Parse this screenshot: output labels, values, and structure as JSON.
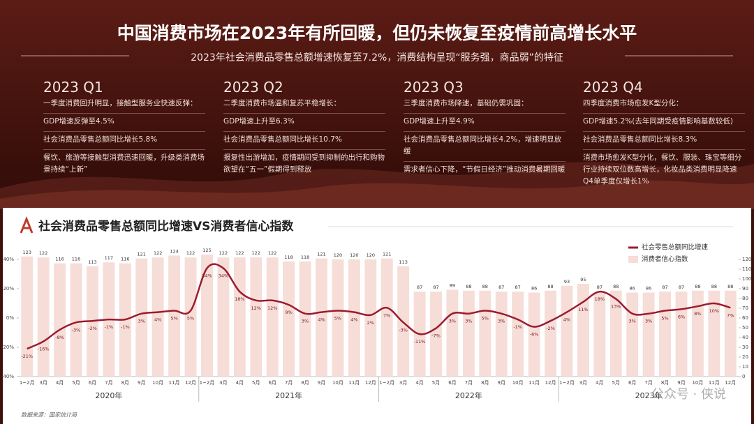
{
  "header": {
    "title": "中国消费市场在2023年有所回暖，但仍未恢复至疫情前高增长水平",
    "subtitle": "2023年社会消费品零售总额增速恢复至7.2%，消费结构呈现“服务强，商品弱”的特征"
  },
  "quarters": [
    {
      "heading": "2023 Q1",
      "intro": "一季度消费回升明显，接触型服务业快速反弹：",
      "items": [
        "GDP增速反弹至4.5%",
        "社会消费品零售总额同比增长5.8%",
        "餐饮、旅游等接触型消费迅速回暖，升级类消费场景持续“上新”"
      ]
    },
    {
      "heading": "2023 Q2",
      "intro": "二季度消费市场温和复苏平稳增长：",
      "items": [
        "GDP增速上升至6.3%",
        "社会消费品零售总额同比增长10.7%",
        "报复性出游增加，疫情期间受到抑制的出行和购物欲望在“五一”假期得到释放"
      ]
    },
    {
      "heading": "2023 Q3",
      "intro": "三季度消费市场降速，基础仍需巩固：",
      "items": [
        "GDP增速上升至4.9%",
        "社会消费品零售总额同比增长4.2%，增速明显放缓",
        "需求者信心下降，“节假日经济”推动消费暑期回暖"
      ]
    },
    {
      "heading": "2023 Q4",
      "intro": "四季度消费市场愈发K型分化：",
      "items": [
        "GDP增速5.2%(去年同期受疫情影响基数较低)",
        "社会消费品零售总额同比增长8.3%",
        "消费市场愈发K型分化，餐饮、服装、珠宝等细分行业持续双位数高增长，化妆品类消费明显降速Q4单季度仅增长1%"
      ]
    }
  ],
  "chart_data": {
    "type": "combo",
    "title": "社会消费品零售总额同比增速VS消费者信心指数",
    "categories": [
      "1~2月",
      "3月",
      "4月",
      "5月",
      "6月",
      "7月",
      "8月",
      "9月",
      "10月",
      "11月",
      "12月",
      "1~2月",
      "3月",
      "4月",
      "5月",
      "6月",
      "7月",
      "8月",
      "9月",
      "10月",
      "11月",
      "12月",
      "1~2月",
      "3月",
      "4月",
      "5月",
      "6月",
      "7月",
      "8月",
      "9月",
      "10月",
      "11月",
      "12月",
      "1~2月",
      "3月",
      "4月",
      "5月",
      "6月",
      "7月",
      "8月",
      "9月",
      "10月",
      "11月",
      "12月"
    ],
    "years": [
      "2020年",
      "2021年",
      "2022年",
      "2023年"
    ],
    "series": [
      {
        "name": "社会零售总额同比增速",
        "type": "line",
        "color": "#9b1b30",
        "values": [
          -21,
          -16,
          -8,
          -3,
          -2,
          -1,
          -1,
          3,
          4,
          5,
          5,
          34,
          34,
          18,
          12,
          12,
          9,
          3,
          4,
          5,
          4,
          2,
          7,
          -3,
          -11,
          -7,
          3,
          3,
          5,
          3,
          -1,
          -6,
          -2,
          4,
          11,
          18,
          13,
          3,
          3,
          5,
          6,
          8,
          10,
          7
        ],
        "value_labels": [
          "-21%",
          "-16%",
          "-8%",
          "-3%",
          "-2%",
          "-1%",
          "-1%",
          "3%",
          "4%",
          "5%",
          "5%",
          "34%",
          "34%",
          "18%",
          "12%",
          "12%",
          "9%",
          "3%",
          "4%",
          "5%",
          "4%",
          "2%",
          "7%",
          "-3%",
          "-11%",
          "-7%",
          "3%",
          "3%",
          "5%",
          "3%",
          "-1%",
          "-6%",
          "-2%",
          "4%",
          "11%",
          "18%",
          "13%",
          "3%",
          "3%",
          "5%",
          "6%",
          "8%",
          "10%",
          "7%"
        ]
      },
      {
        "name": "消费者信心指数",
        "type": "bar",
        "axis": "y2",
        "color": "#f6ddd7",
        "values": [
          123,
          122,
          116,
          116,
          113,
          117,
          116,
          121,
          122,
          124,
          122,
          125,
          122,
          122,
          122,
          122,
          118,
          118,
          121,
          120,
          120,
          120,
          121,
          113,
          87,
          87,
          89,
          88,
          88,
          87,
          87,
          86,
          88,
          93,
          95,
          87,
          88,
          86,
          86,
          87,
          87,
          88,
          88,
          88
        ]
      }
    ],
    "ylim": [
      -40,
      40
    ],
    "yticks": [
      {
        "value": -40,
        "label": "-40%"
      },
      {
        "value": -20,
        "label": "-20%"
      },
      {
        "value": 0,
        "label": "0%"
      },
      {
        "value": 20,
        "label": "20%"
      },
      {
        "value": 40,
        "label": "40%"
      }
    ],
    "y2lim": [
      0,
      120
    ],
    "y2ticks": [
      0,
      10,
      20,
      30,
      40,
      50,
      60,
      70,
      80,
      90,
      100,
      110,
      120
    ],
    "legend": "top-right",
    "source": "数据来源：国家统计局"
  },
  "watermark": "公众号 · 侠说"
}
